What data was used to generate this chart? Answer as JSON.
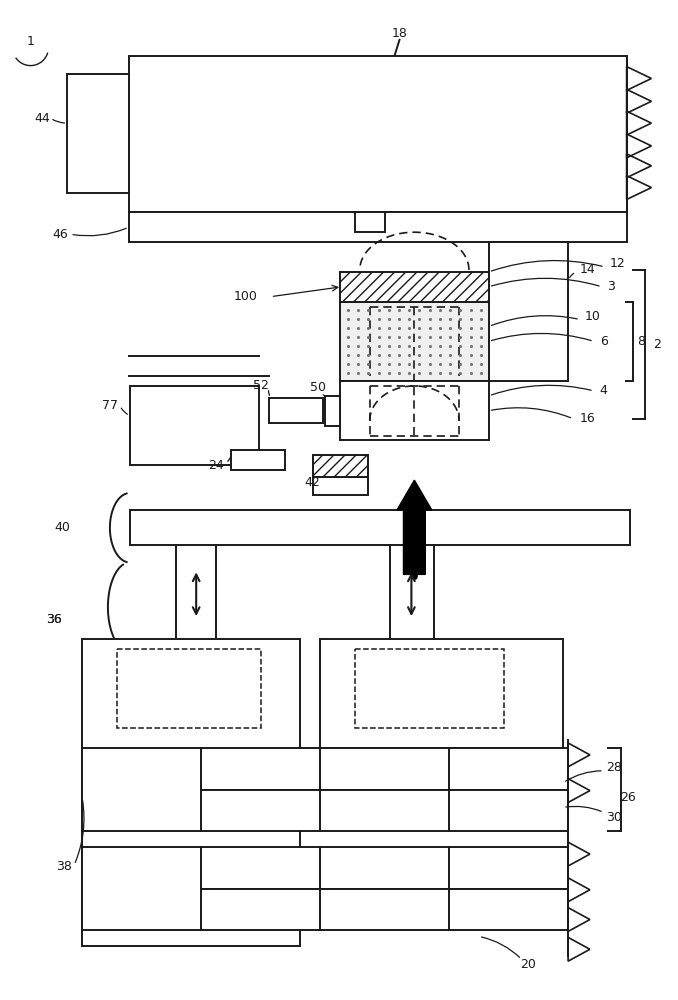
{
  "bg_color": "#ffffff",
  "lc": "#1a1a1a",
  "lw": 1.4,
  "fig_w": 6.78,
  "fig_h": 10.0
}
